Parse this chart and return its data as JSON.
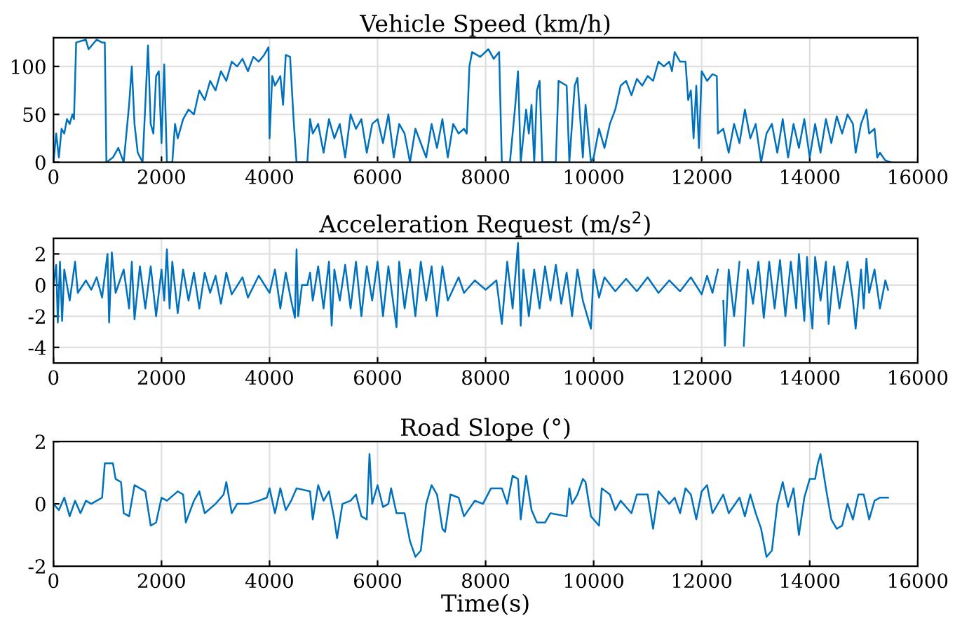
{
  "chart_data": [
    {
      "type": "line",
      "title": "Vehicle Speed (km/h)",
      "xlim": [
        0,
        16000
      ],
      "xticks": [
        0,
        2000,
        4000,
        6000,
        8000,
        10000,
        12000,
        14000,
        16000
      ],
      "ylim": [
        0,
        130
      ],
      "yticks": [
        0,
        50,
        100
      ],
      "grid": true,
      "marker": "none",
      "line_style": "solid",
      "series": [
        {
          "color": "#0072bd",
          "x": [
            0,
            50,
            100,
            150,
            200,
            250,
            300,
            350,
            380,
            420,
            600,
            650,
            800,
            900,
            950,
            980,
            1100,
            1200,
            1300,
            1350,
            1400,
            1450,
            1500,
            1560,
            1650,
            1700,
            1750,
            1800,
            1850,
            1900,
            1950,
            2000,
            2050,
            2100,
            2200,
            2250,
            2300,
            2400,
            2500,
            2600,
            2700,
            2800,
            2900,
            3000,
            3100,
            3200,
            3300,
            3400,
            3500,
            3600,
            3700,
            3800,
            3900,
            3980,
            4000,
            4050,
            4100,
            4200,
            4250,
            4300,
            4380,
            4450,
            4500,
            4700,
            4750,
            4800,
            4900,
            5000,
            5100,
            5200,
            5300,
            5400,
            5500,
            5600,
            5700,
            5800,
            5900,
            6000,
            6100,
            6200,
            6300,
            6400,
            6500,
            6600,
            6700,
            6800,
            6900,
            7000,
            7100,
            7200,
            7300,
            7400,
            7500,
            7600,
            7650,
            7700,
            7750,
            7900,
            8050,
            8150,
            8250,
            8300,
            8450,
            8550,
            8600,
            8650,
            8750,
            8800,
            8850,
            8900,
            8950,
            9000,
            9050,
            9300,
            9350,
            9500,
            9550,
            9650,
            9700,
            9800,
            9850,
            9950,
            10000,
            10100,
            10200,
            10300,
            10400,
            10500,
            10600,
            10700,
            10800,
            10900,
            11000,
            11100,
            11200,
            11300,
            11400,
            11450,
            11500,
            11600,
            11700,
            11750,
            11800,
            11850,
            11900,
            11950,
            12000,
            12100,
            12200,
            12280,
            12300,
            12400,
            12500,
            12600,
            12700,
            12800,
            12900,
            13000,
            13100,
            13200,
            13300,
            13400,
            13500,
            13600,
            13700,
            13800,
            13900,
            14000,
            14100,
            14200,
            14300,
            14400,
            14500,
            14600,
            14700,
            14800,
            14850,
            14950,
            15050,
            15100,
            15200,
            15250,
            15300,
            15400,
            15500
          ],
          "values": [
            0,
            30,
            5,
            35,
            30,
            45,
            40,
            50,
            45,
            125,
            128,
            118,
            128,
            125,
            125,
            0,
            5,
            15,
            0,
            30,
            60,
            100,
            40,
            10,
            0,
            60,
            122,
            40,
            30,
            90,
            95,
            20,
            102,
            0,
            0,
            40,
            25,
            45,
            55,
            50,
            75,
            65,
            85,
            75,
            95,
            85,
            105,
            100,
            108,
            95,
            110,
            105,
            112,
            120,
            25,
            90,
            80,
            90,
            60,
            112,
            110,
            40,
            0,
            0,
            45,
            30,
            40,
            10,
            45,
            25,
            40,
            5,
            50,
            35,
            45,
            10,
            40,
            45,
            20,
            50,
            5,
            40,
            30,
            0,
            35,
            20,
            5,
            40,
            15,
            45,
            5,
            40,
            30,
            35,
            30,
            100,
            115,
            110,
            118,
            108,
            115,
            0,
            0,
            60,
            95,
            0,
            55,
            30,
            60,
            0,
            75,
            85,
            0,
            0,
            85,
            80,
            0,
            80,
            88,
            5,
            60,
            0,
            5,
            35,
            15,
            40,
            55,
            80,
            85,
            70,
            87,
            80,
            90,
            85,
            105,
            100,
            105,
            95,
            115,
            105,
            105,
            65,
            75,
            25,
            80,
            15,
            95,
            85,
            92,
            90,
            30,
            35,
            10,
            40,
            20,
            55,
            25,
            40,
            0,
            30,
            40,
            10,
            45,
            5,
            40,
            15,
            45,
            5,
            40,
            10,
            45,
            20,
            48,
            30,
            50,
            40,
            10,
            40,
            55,
            30,
            35,
            5,
            10,
            2,
            0
          ]
        }
      ]
    },
    {
      "type": "line",
      "title": "Acceleration Request (m/s$^{2}$)",
      "xlim": [
        0,
        16000
      ],
      "xticks": [
        0,
        2000,
        4000,
        6000,
        8000,
        10000,
        12000,
        14000,
        16000
      ],
      "ylim": [
        -5,
        3
      ],
      "yticks": [
        -4,
        -2,
        0,
        2
      ],
      "grid": true,
      "marker": "none",
      "line_style": "solid",
      "series": [
        {
          "color": "#0072bd",
          "x": [
            0,
            50,
            80,
            120,
            160,
            200,
            300,
            400,
            450,
            600,
            700,
            800,
            900,
            1000,
            1030,
            1080,
            1150,
            1300,
            1400,
            1450,
            1500,
            1600,
            1700,
            1800,
            1900,
            2000,
            2050,
            2100,
            2150,
            2200,
            2300,
            2400,
            2500,
            2600,
            2700,
            2800,
            2900,
            3000,
            3100,
            3200,
            3300,
            3500,
            3600,
            3800,
            4000,
            4100,
            4200,
            4300,
            4400,
            4470,
            4500,
            4530,
            4600,
            4700,
            4750,
            4800,
            4900,
            5000,
            5100,
            5150,
            5200,
            5300,
            5400,
            5500,
            5600,
            5700,
            5800,
            5900,
            6000,
            6100,
            6200,
            6350,
            6400,
            6500,
            6600,
            6700,
            6800,
            6900,
            7000,
            7100,
            7200,
            7300,
            7500,
            7600,
            7800,
            8000,
            8200,
            8300,
            8400,
            8500,
            8600,
            8650,
            8700,
            8800,
            8900,
            9000,
            9100,
            9200,
            9300,
            9400,
            9500,
            9600,
            9700,
            9800,
            9950,
            10000,
            10100,
            10200,
            10400,
            10600,
            10800,
            11000,
            11200,
            11400,
            11600,
            11800,
            12000,
            12100,
            12200,
            12300,
            12380,
            12400,
            12430,
            12500,
            12600,
            12700,
            12750,
            12780,
            12850,
            12950,
            13050,
            13150,
            13250,
            13350,
            13450,
            13550,
            13650,
            13750,
            13800,
            13900,
            13950,
            14000,
            14050,
            14100,
            14200,
            14300,
            14350,
            14450,
            14550,
            14700,
            14800,
            14850,
            14950,
            15000,
            15050,
            15100,
            15200,
            15300,
            15400,
            15450
          ],
          "values": [
            0,
            1.3,
            -2.4,
            1.5,
            -2.3,
            1,
            -1,
            1.5,
            -0.5,
            0.3,
            -0.3,
            0.5,
            -0.8,
            2,
            -2.4,
            2.1,
            -0.5,
            1,
            -1.5,
            1.5,
            -2.2,
            1.2,
            -1.5,
            1.2,
            -2,
            1,
            -1,
            2.3,
            -1.5,
            1.5,
            -1.8,
            1,
            -1,
            0.8,
            -1.5,
            0.8,
            -0.5,
            0.6,
            -1.2,
            0.8,
            -0.6,
            0.5,
            -0.8,
            0.6,
            -0.5,
            1,
            -1.5,
            0.8,
            -1,
            -2.1,
            2.3,
            -2,
            0,
            0,
            0.8,
            -1,
            1.2,
            -1.5,
            1.5,
            -2.6,
            1,
            -1,
            1.3,
            -1.5,
            1.5,
            -2,
            1.2,
            -1,
            1.5,
            -2,
            1.2,
            -2.7,
            1.5,
            -1.5,
            1,
            -2,
            1.5,
            -1,
            1.2,
            -2,
            1.2,
            -1,
            0.5,
            -0.5,
            0.3,
            -0.3,
            0.3,
            -2.5,
            1.5,
            -1.5,
            2.7,
            -2.6,
            1,
            -2,
            1,
            -1.5,
            1.2,
            -1,
            1.3,
            -1.2,
            0.8,
            -2,
            1,
            -1,
            -2.8,
            1,
            -0.8,
            0.5,
            -0.4,
            0.4,
            -0.4,
            0.5,
            -0.5,
            0.3,
            -0.4,
            0.5,
            -0.6,
            0.6,
            -0.5,
            1,
            null,
            -1,
            -3.9,
            1,
            -2,
            1.5,
            null,
            -3.9,
            1,
            -1.2,
            1.5,
            -2.1,
            1.5,
            -1.5,
            1.6,
            -2,
            1.5,
            -1.5,
            2,
            -2.3,
            1.8,
            -1,
            -2.8,
            1.8,
            -1,
            1.5,
            -2.5,
            1.2,
            -1.5,
            1.5,
            -1,
            -2.8,
            1,
            -1.5,
            1.7,
            -0.5,
            1,
            -1.5,
            0.3,
            -0.3
          ]
        }
      ]
    },
    {
      "type": "line",
      "title": "Road Slope (°)",
      "xlabel": "Time(s)",
      "xlim": [
        0,
        16000
      ],
      "xticks": [
        0,
        2000,
        4000,
        6000,
        8000,
        10000,
        12000,
        14000,
        16000
      ],
      "ylim": [
        -2,
        2
      ],
      "yticks": [
        -2,
        0,
        2
      ],
      "grid": true,
      "marker": "none",
      "line_style": "solid",
      "series": [
        {
          "color": "#0072bd",
          "x": [
            0,
            100,
            200,
            300,
            400,
            500,
            600,
            700,
            800,
            900,
            950,
            1100,
            1150,
            1250,
            1300,
            1400,
            1500,
            1600,
            1700,
            1800,
            1900,
            2000,
            2100,
            2300,
            2400,
            2450,
            2600,
            2700,
            2800,
            3000,
            3150,
            3200,
            3300,
            3400,
            3600,
            3800,
            3950,
            4000,
            4100,
            4200,
            4300,
            4400,
            4500,
            4750,
            4800,
            4900,
            5000,
            5100,
            5200,
            5250,
            5350,
            5500,
            5600,
            5700,
            5800,
            5850,
            5900,
            6000,
            6100,
            6200,
            6250,
            6350,
            6500,
            6600,
            6700,
            6800,
            6900,
            7000,
            7100,
            7200,
            7250,
            7350,
            7500,
            7600,
            7800,
            7950,
            8100,
            8300,
            8400,
            8500,
            8600,
            8650,
            8750,
            8850,
            8950,
            9100,
            9200,
            9500,
            9550,
            9600,
            9700,
            9800,
            9850,
            9950,
            10100,
            10150,
            10300,
            10400,
            10500,
            10700,
            10800,
            11000,
            11100,
            11200,
            11400,
            11500,
            11600,
            11700,
            11800,
            11900,
            12000,
            12100,
            12200,
            12400,
            12500,
            12700,
            12800,
            12900,
            13000,
            13100,
            13200,
            13300,
            13400,
            13500,
            13600,
            13700,
            13800,
            13900,
            14000,
            14100,
            14150,
            14200,
            14300,
            14400,
            14500,
            14600,
            14700,
            14800,
            14900,
            15000,
            15100,
            15200,
            15300,
            15450
          ],
          "values": [
            0,
            -0.2,
            0.2,
            -0.4,
            0.1,
            -0.3,
            0.1,
            0,
            0.1,
            0.2,
            1.3,
            1.3,
            0.8,
            0.7,
            -0.3,
            -0.4,
            0.6,
            0.5,
            0.4,
            -0.7,
            -0.6,
            0.2,
            0.1,
            0.4,
            0.3,
            -0.6,
            0.1,
            0.4,
            -0.3,
            0,
            0.3,
            0.7,
            -0.3,
            0,
            0,
            0.1,
            0.2,
            0.5,
            -0.3,
            0.5,
            -0.2,
            0.1,
            0.5,
            0.4,
            -0.5,
            0.6,
            0.1,
            0.4,
            -0.5,
            -1.1,
            0,
            0.1,
            0.3,
            -0.4,
            -0.5,
            1.6,
            0,
            0.6,
            -0.1,
            0,
            0.5,
            -0.3,
            -0.3,
            -1.2,
            -1.7,
            -1.5,
            0,
            0.6,
            0.3,
            -0.8,
            -0.9,
            0.3,
            0.2,
            -0.4,
            0.1,
            0,
            0.5,
            0.5,
            0,
            0.9,
            0.8,
            -0.5,
            0.9,
            -0.2,
            -0.6,
            -0.6,
            -0.3,
            -0.4,
            0.5,
            0,
            0.3,
            0.8,
            0.7,
            -0.4,
            -0.7,
            0.5,
            0.3,
            -0.2,
            0.1,
            -0.3,
            0.3,
            0.3,
            -0.8,
            0.4,
            0,
            0.2,
            -0.3,
            0.5,
            0.3,
            -0.5,
            0.4,
            0.6,
            -0.3,
            0.3,
            -0.3,
            0.2,
            -0.4,
            0.3,
            -0.3,
            -0.8,
            -1.7,
            -1.5,
            0,
            0.7,
            -0.1,
            0.5,
            -1,
            0.2,
            0.8,
            0.8,
            1.3,
            1.6,
            0.5,
            -0.5,
            -0.8,
            -0.7,
            0,
            -0.5,
            0.3,
            0.3,
            -0.5,
            0.1,
            0.2,
            0.2
          ]
        }
      ]
    }
  ]
}
